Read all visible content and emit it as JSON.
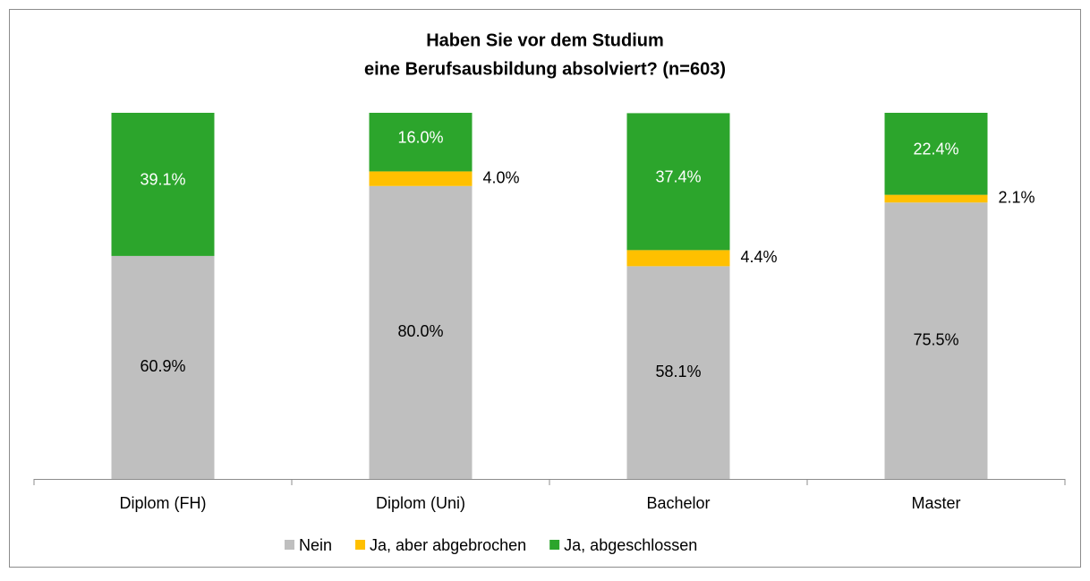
{
  "chart_data": {
    "type": "stacked_bar",
    "title": [
      "Haben Sie vor dem Studium",
      "eine Berufsausbildung absolviert? (n=603)"
    ],
    "categories": [
      "Diplom (FH)",
      "Diplom (Uni)",
      "Bachelor",
      "Master"
    ],
    "ylim": [
      0,
      100
    ],
    "series": [
      {
        "name": "Nein",
        "color": "#bfbfbf",
        "values": [
          60.9,
          80.0,
          58.1,
          75.5
        ],
        "value_labels": [
          "60.9%",
          "80.0%",
          "58.1%",
          "75.5%"
        ]
      },
      {
        "name": "Ja, aber abgebrochen",
        "color": "#ffc000",
        "values": [
          0,
          4.0,
          4.4,
          2.1
        ],
        "value_labels": [
          null,
          "4.0%",
          "4.4%",
          "2.1%"
        ]
      },
      {
        "name": "Ja, abgeschlossen",
        "color": "#2ca52c",
        "values": [
          39.1,
          16.0,
          37.4,
          22.4
        ],
        "value_labels": [
          "39.1%",
          "16.0%",
          "37.4%",
          "22.4%"
        ]
      }
    ],
    "legend": "bottom"
  }
}
